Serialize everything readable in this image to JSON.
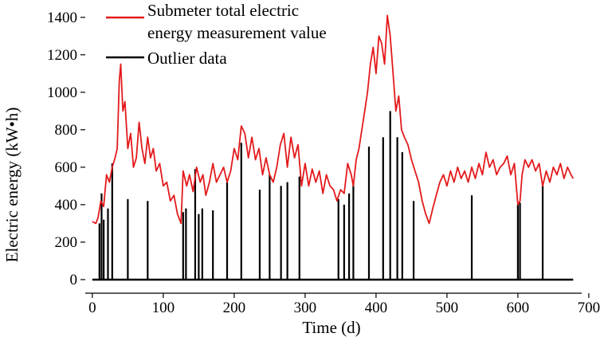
{
  "chart_data": {
    "type": "line",
    "xlabel": "Time (d)",
    "ylabel": "Electric energy (kW•h)",
    "xlim": [
      -10,
      690
    ],
    "ylim": [
      -30,
      1450
    ],
    "xticks": [
      0,
      100,
      200,
      300,
      400,
      500,
      600,
      700
    ],
    "yticks": [
      0,
      200,
      400,
      600,
      800,
      1000,
      1200,
      1400
    ],
    "xtick_labels": [
      "0",
      "100",
      "200",
      "300",
      "400",
      "500",
      "600",
      "700"
    ],
    "ytick_labels": [
      "0",
      "200",
      "400",
      "600",
      "800",
      "1000",
      "1200",
      "1400"
    ],
    "grid": false,
    "legend_position": "top-left",
    "series": [
      {
        "name": "Submeter total electric energy measurement value",
        "color": "#e31a1c",
        "style": "line",
        "points": [
          [
            0,
            310
          ],
          [
            5,
            300
          ],
          [
            8,
            330
          ],
          [
            12,
            420
          ],
          [
            16,
            390
          ],
          [
            20,
            560
          ],
          [
            24,
            520
          ],
          [
            28,
            600
          ],
          [
            32,
            650
          ],
          [
            35,
            700
          ],
          [
            38,
            1060
          ],
          [
            40,
            1150
          ],
          [
            43,
            900
          ],
          [
            46,
            950
          ],
          [
            50,
            700
          ],
          [
            54,
            780
          ],
          [
            58,
            600
          ],
          [
            62,
            650
          ],
          [
            66,
            840
          ],
          [
            70,
            700
          ],
          [
            74,
            620
          ],
          [
            78,
            760
          ],
          [
            82,
            650
          ],
          [
            86,
            700
          ],
          [
            90,
            580
          ],
          [
            95,
            620
          ],
          [
            100,
            500
          ],
          [
            105,
            520
          ],
          [
            110,
            420
          ],
          [
            115,
            450
          ],
          [
            120,
            350
          ],
          [
            125,
            300
          ],
          [
            128,
            580
          ],
          [
            133,
            500
          ],
          [
            137,
            560
          ],
          [
            142,
            470
          ],
          [
            147,
            600
          ],
          [
            152,
            520
          ],
          [
            156,
            560
          ],
          [
            160,
            450
          ],
          [
            165,
            520
          ],
          [
            170,
            620
          ],
          [
            175,
            520
          ],
          [
            180,
            560
          ],
          [
            185,
            600
          ],
          [
            190,
            520
          ],
          [
            195,
            580
          ],
          [
            200,
            700
          ],
          [
            205,
            640
          ],
          [
            210,
            820
          ],
          [
            215,
            780
          ],
          [
            220,
            650
          ],
          [
            225,
            760
          ],
          [
            230,
            640
          ],
          [
            235,
            700
          ],
          [
            240,
            560
          ],
          [
            245,
            650
          ],
          [
            250,
            560
          ],
          [
            255,
            520
          ],
          [
            260,
            600
          ],
          [
            265,
            720
          ],
          [
            270,
            780
          ],
          [
            275,
            600
          ],
          [
            280,
            760
          ],
          [
            285,
            650
          ],
          [
            290,
            720
          ],
          [
            295,
            500
          ],
          [
            300,
            620
          ],
          [
            305,
            500
          ],
          [
            310,
            590
          ],
          [
            315,
            520
          ],
          [
            320,
            580
          ],
          [
            325,
            460
          ],
          [
            330,
            560
          ],
          [
            335,
            500
          ],
          [
            340,
            480
          ],
          [
            345,
            420
          ],
          [
            350,
            480
          ],
          [
            355,
            460
          ],
          [
            360,
            620
          ],
          [
            365,
            560
          ],
          [
            368,
            500
          ],
          [
            372,
            640
          ],
          [
            376,
            700
          ],
          [
            380,
            800
          ],
          [
            384,
            900
          ],
          [
            388,
            1000
          ],
          [
            392,
            1150
          ],
          [
            396,
            1240
          ],
          [
            400,
            1100
          ],
          [
            404,
            1300
          ],
          [
            408,
            1260
          ],
          [
            412,
            1150
          ],
          [
            416,
            1410
          ],
          [
            420,
            1300
          ],
          [
            424,
            1100
          ],
          [
            428,
            900
          ],
          [
            432,
            980
          ],
          [
            436,
            800
          ],
          [
            440,
            760
          ],
          [
            445,
            720
          ],
          [
            450,
            640
          ],
          [
            455,
            580
          ],
          [
            460,
            520
          ],
          [
            465,
            420
          ],
          [
            470,
            350
          ],
          [
            475,
            300
          ],
          [
            480,
            380
          ],
          [
            485,
            450
          ],
          [
            490,
            520
          ],
          [
            495,
            560
          ],
          [
            500,
            500
          ],
          [
            505,
            580
          ],
          [
            510,
            520
          ],
          [
            515,
            600
          ],
          [
            520,
            540
          ],
          [
            525,
            580
          ],
          [
            530,
            520
          ],
          [
            535,
            600
          ],
          [
            540,
            540
          ],
          [
            545,
            620
          ],
          [
            550,
            560
          ],
          [
            555,
            680
          ],
          [
            560,
            600
          ],
          [
            565,
            640
          ],
          [
            570,
            560
          ],
          [
            575,
            600
          ],
          [
            580,
            620
          ],
          [
            585,
            660
          ],
          [
            590,
            560
          ],
          [
            595,
            620
          ],
          [
            600,
            400
          ],
          [
            603,
            420
          ],
          [
            606,
            560
          ],
          [
            610,
            640
          ],
          [
            615,
            600
          ],
          [
            620,
            640
          ],
          [
            625,
            580
          ],
          [
            630,
            620
          ],
          [
            635,
            500
          ],
          [
            640,
            580
          ],
          [
            645,
            520
          ],
          [
            650,
            600
          ],
          [
            655,
            560
          ],
          [
            660,
            620
          ],
          [
            665,
            540
          ],
          [
            670,
            600
          ],
          [
            675,
            560
          ],
          [
            678,
            540
          ]
        ]
      },
      {
        "name": "Outlier data",
        "color": "#000000",
        "style": "spikes",
        "points": [
          [
            10,
            300
          ],
          [
            13,
            460
          ],
          [
            16,
            320
          ],
          [
            22,
            380
          ],
          [
            28,
            620
          ],
          [
            50,
            430
          ],
          [
            78,
            420
          ],
          [
            128,
            360
          ],
          [
            132,
            380
          ],
          [
            145,
            590
          ],
          [
            150,
            350
          ],
          [
            155,
            380
          ],
          [
            170,
            370
          ],
          [
            190,
            520
          ],
          [
            210,
            730
          ],
          [
            236,
            480
          ],
          [
            250,
            560
          ],
          [
            266,
            500
          ],
          [
            275,
            520
          ],
          [
            292,
            550
          ],
          [
            347,
            430
          ],
          [
            355,
            400
          ],
          [
            362,
            460
          ],
          [
            368,
            520
          ],
          [
            390,
            710
          ],
          [
            410,
            760
          ],
          [
            420,
            900
          ],
          [
            430,
            760
          ],
          [
            437,
            680
          ],
          [
            453,
            420
          ],
          [
            535,
            450
          ],
          [
            600,
            400
          ],
          [
            603,
            410
          ],
          [
            635,
            520
          ]
        ]
      }
    ]
  }
}
